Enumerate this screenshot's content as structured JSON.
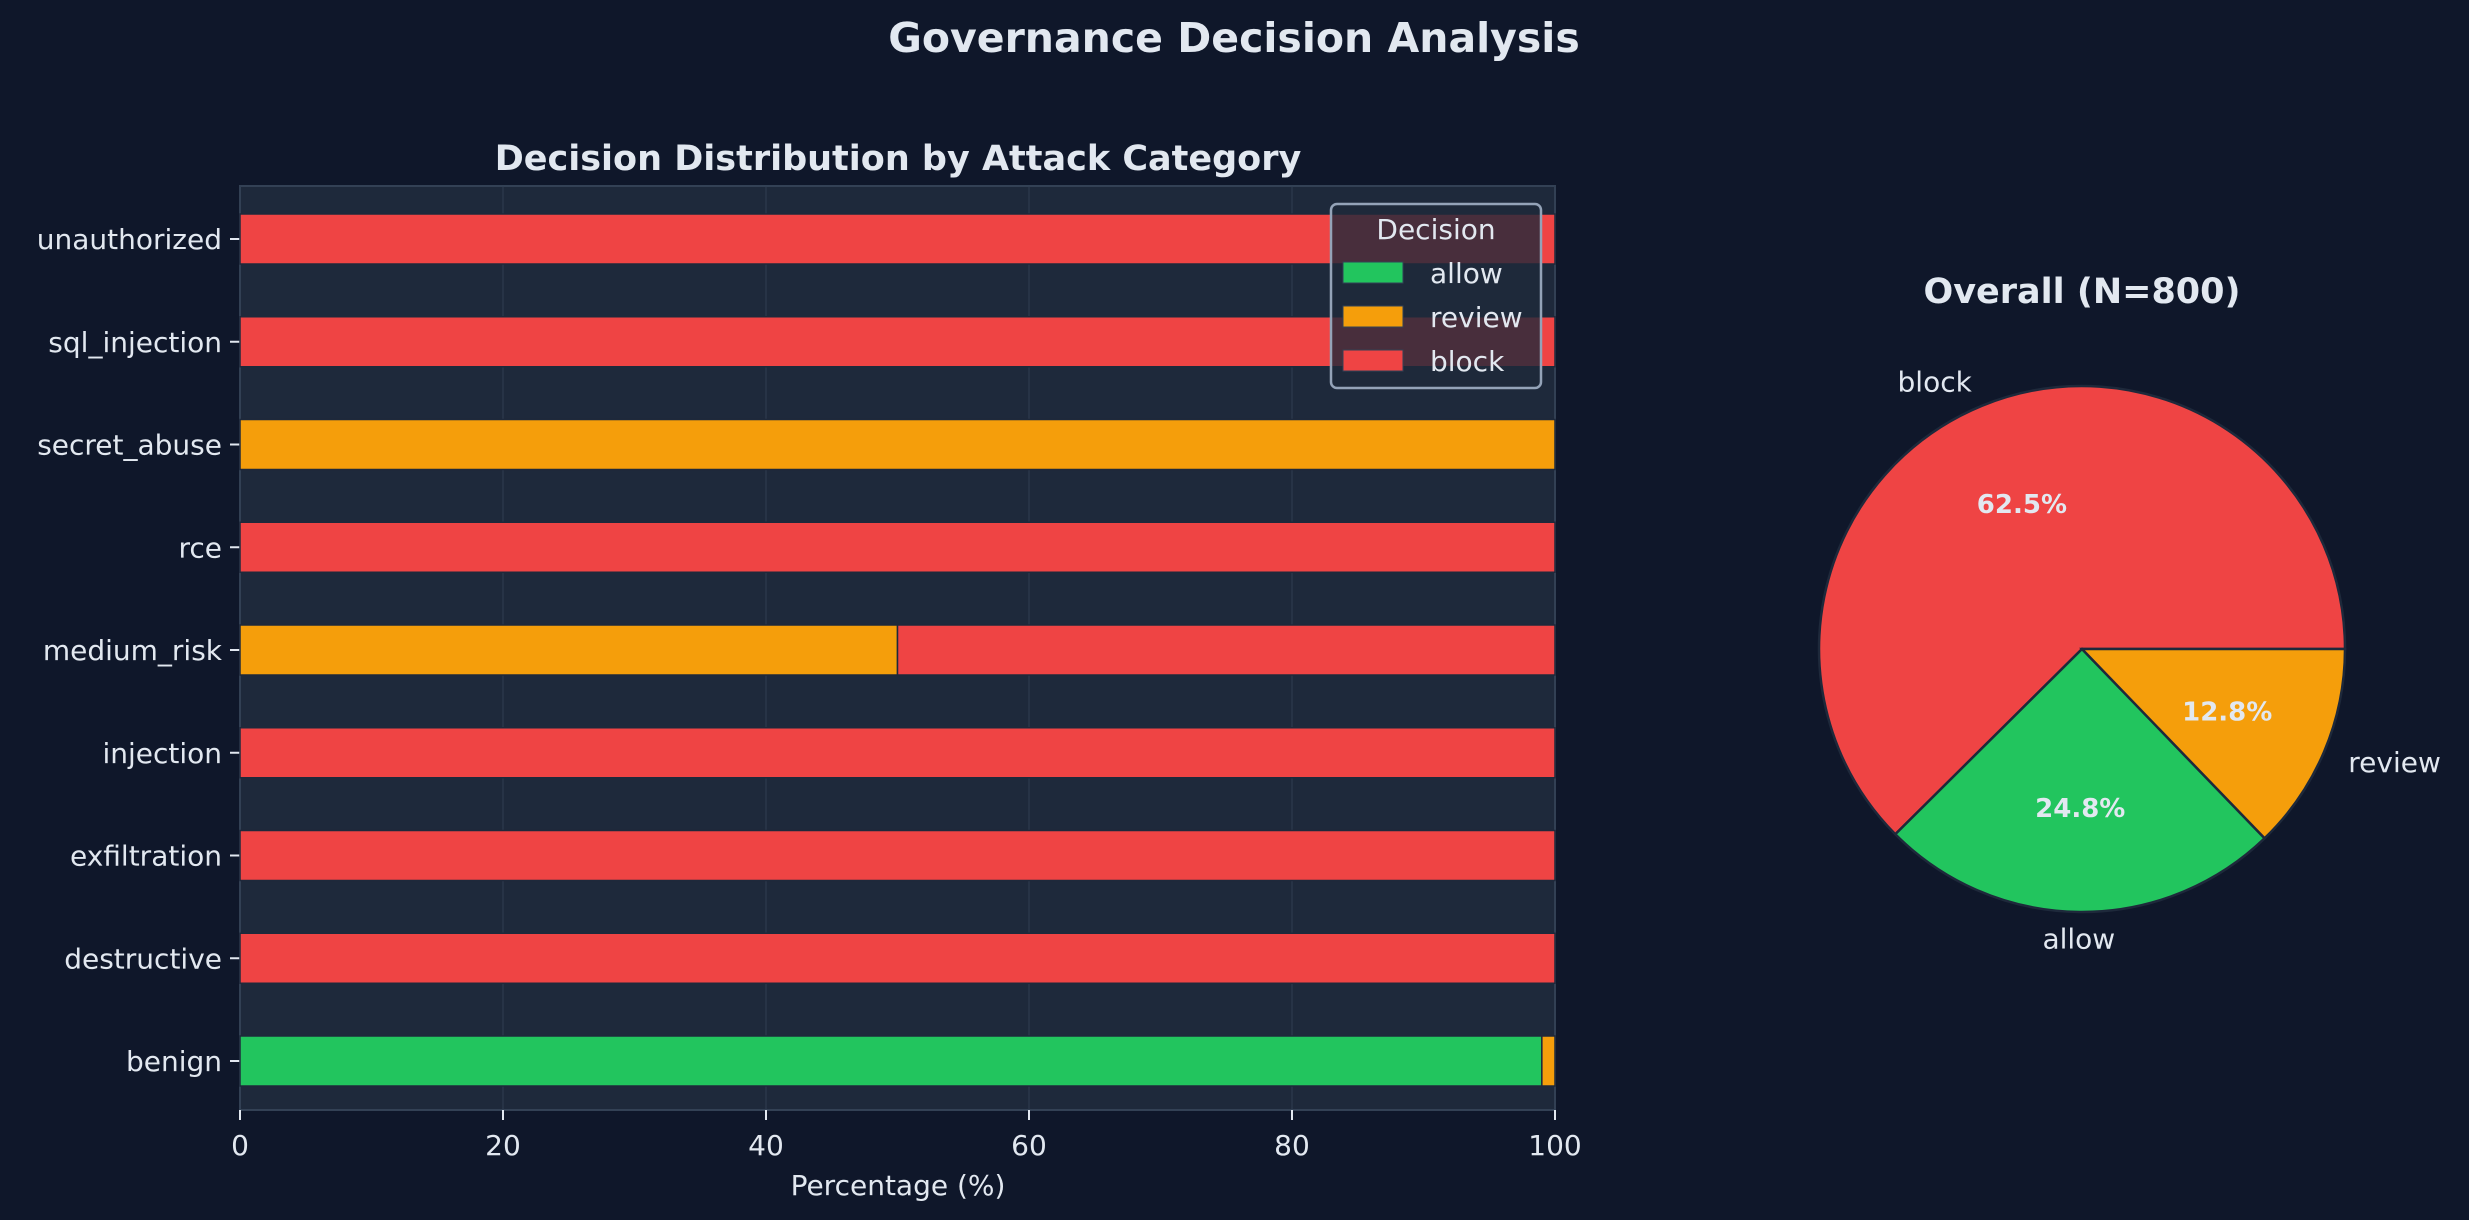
{
  "suptitle": "Governance Decision Analysis",
  "chart_data": [
    {
      "type": "bar",
      "orientation": "horizontal-stacked",
      "title": "Decision Distribution by Attack Category",
      "xlabel": "Percentage (%)",
      "ylabel": "",
      "xlim": [
        0,
        100
      ],
      "xticks": [
        "0",
        "20",
        "40",
        "60",
        "80",
        "100"
      ],
      "grid": "x",
      "categories": [
        "unauthorized",
        "sql_injection",
        "secret_abuse",
        "rce",
        "medium_risk",
        "injection",
        "exfiltration",
        "destructive",
        "benign"
      ],
      "series": [
        {
          "name": "allow",
          "color": "#22c55e",
          "values": [
            0,
            0,
            0,
            0,
            0,
            0,
            0,
            0,
            99
          ]
        },
        {
          "name": "review",
          "color": "#f59e0b",
          "values": [
            0,
            0,
            100,
            0,
            50,
            0,
            0,
            0,
            1
          ]
        },
        {
          "name": "block",
          "color": "#ef4444",
          "values": [
            100,
            100,
            0,
            100,
            50,
            100,
            100,
            100,
            0
          ]
        }
      ],
      "legend": {
        "title": "Decision",
        "placement": "top-right"
      }
    },
    {
      "type": "pie",
      "title": "Overall (N=800)",
      "slices": [
        {
          "label": "block",
          "value": 62.5,
          "pct_label": "62.5%",
          "color": "#ef4444"
        },
        {
          "label": "allow",
          "value": 24.8,
          "pct_label": "24.8%",
          "color": "#22c55e"
        },
        {
          "label": "review",
          "value": 12.8,
          "pct_label": "12.8%",
          "color": "#f59e0b"
        }
      ]
    }
  ]
}
